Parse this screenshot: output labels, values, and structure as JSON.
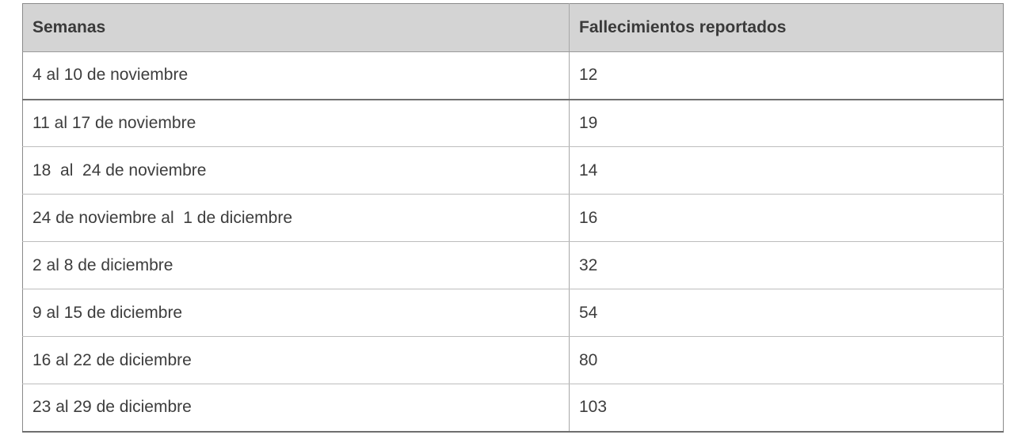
{
  "table": {
    "headers": [
      "Semanas",
      "Fallecimientos reportados"
    ],
    "rows": [
      [
        "4 al 10 de noviembre",
        "12"
      ],
      [
        "11 al 17 de noviembre",
        "19"
      ],
      [
        "18  al  24 de noviembre",
        "14"
      ],
      [
        "24 de noviembre al  1 de diciembre",
        "16"
      ],
      [
        "2 al 8 de diciembre",
        "32"
      ],
      [
        "9 al 15 de diciembre",
        "54"
      ],
      [
        "16 al 22 de diciembre",
        "80"
      ],
      [
        "23 al 29 de diciembre",
        "103"
      ]
    ]
  }
}
